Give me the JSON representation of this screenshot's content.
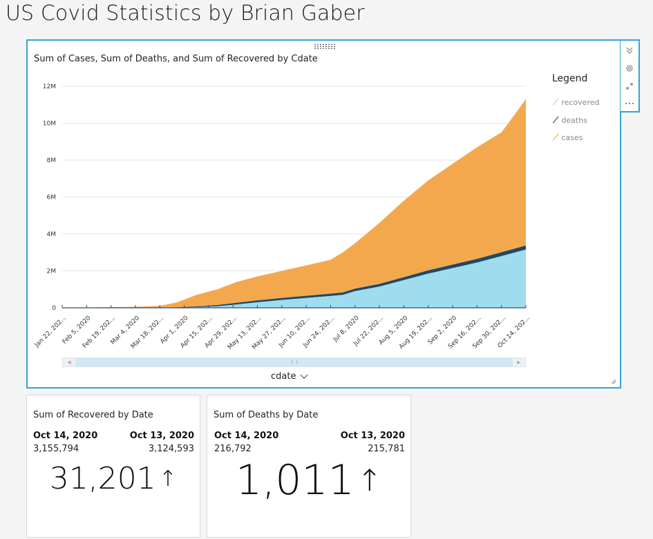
{
  "page": {
    "title": "US Covid Statistics by Brian Gaber"
  },
  "line_visual": {
    "title": "Sum of Cases, Sum of Deaths, and Sum of Recovered by Cdate",
    "x_axis_title": "cdate",
    "legend": {
      "title": "Legend",
      "items": [
        {
          "label": "recovered",
          "color": "#9edcee"
        },
        {
          "label": "deaths",
          "color": "#1f4a63"
        },
        {
          "label": "cases",
          "color": "#f4a84e"
        }
      ]
    }
  },
  "chart_data": {
    "type": "area",
    "title": "Sum of Cases, Sum of Deaths, and Sum of Recovered by Cdate",
    "xlabel": "cdate",
    "ylabel": "",
    "ylim": [
      0,
      12000000
    ],
    "y_ticks": [
      "0",
      "2M",
      "4M",
      "6M",
      "8M",
      "10M",
      "12M"
    ],
    "y_tick_values": [
      0,
      2000000,
      4000000,
      6000000,
      8000000,
      10000000,
      12000000
    ],
    "x_tick_labels": [
      "Jan 22, 202...",
      "Feb 5, 2020",
      "Feb 19, 202...",
      "Mar 4, 2020",
      "Mar 18, 202...",
      "Apr 1, 2020",
      "Apr 15, 202...",
      "Apr 29, 202...",
      "May 13, 202...",
      "May 27, 202...",
      "Jun 10, 202...",
      "Jun 24, 202...",
      "Jul 8, 2020",
      "Jul 22, 202...",
      "Aug 5, 2020",
      "Aug 19, 202...",
      "Sep 2, 2020",
      "Sep 16, 202...",
      "Sep 30, 202...",
      "Oct 14, 202..."
    ],
    "x_tick_days": [
      0,
      14,
      28,
      42,
      56,
      70,
      84,
      98,
      112,
      126,
      140,
      154,
      168,
      182,
      196,
      210,
      224,
      238,
      252,
      266
    ],
    "grid": true,
    "legend_position": "right",
    "x": [
      "Jan 22, 2020",
      "Mar 1, 2020",
      "Mar 18, 2020",
      "Mar 28, 2020",
      "Apr 8, 2020",
      "Apr 20, 2020",
      "May 1, 2020",
      "May 13, 2020",
      "May 27, 2020",
      "Jun 10, 2020",
      "Jun 24, 2020",
      "Jul 1, 2020",
      "Jul 8, 2020",
      "Jul 22, 2020",
      "Aug 5, 2020",
      "Aug 19, 2020",
      "Sep 2, 2020",
      "Sep 16, 2020",
      "Sep 30, 2020",
      "Oct 14, 2020"
    ],
    "x_days": [
      0,
      39,
      56,
      66,
      77,
      89,
      100,
      112,
      126,
      140,
      154,
      161,
      168,
      182,
      196,
      210,
      224,
      238,
      252,
      266
    ],
    "series": [
      {
        "name": "cases",
        "color": "#f4a84e",
        "values": [
          0,
          50000,
          100000,
          300000,
          700000,
          1000000,
          1400000,
          1700000,
          2000000,
          2300000,
          2600000,
          3000000,
          3500000,
          4600000,
          5800000,
          6900000,
          7800000,
          8700000,
          9500000,
          11300000
        ]
      },
      {
        "name": "deaths",
        "color": "#1f4a63",
        "values": [
          0,
          0,
          3000,
          15000,
          40000,
          70000,
          90000,
          100000,
          110000,
          120000,
          125000,
          130000,
          135000,
          145000,
          160000,
          175000,
          190000,
          200000,
          208000,
          216792
        ]
      },
      {
        "name": "recovered",
        "color": "#9edcee",
        "values": [
          0,
          0,
          5000,
          10000,
          30000,
          80000,
          180000,
          300000,
          420000,
          530000,
          640000,
          700000,
          900000,
          1150000,
          1500000,
          1850000,
          2150000,
          2450000,
          2800000,
          3155794
        ]
      }
    ]
  },
  "kpi_recovered": {
    "title": "Sum of Recovered by Date",
    "date_current": "Oct 14, 2020",
    "value_current": "3,155,794",
    "date_previous": "Oct 13, 2020",
    "value_previous": "3,124,593",
    "change": "31,201",
    "trend_icon": "up-arrow-icon"
  },
  "kpi_deaths": {
    "title": "Sum of Deaths by Date",
    "date_current": "Oct 14, 2020",
    "value_current": "216,792",
    "date_previous": "Oct 13, 2020",
    "value_previous": "215,781",
    "change": "1,011",
    "trend_icon": "up-arrow-icon"
  }
}
